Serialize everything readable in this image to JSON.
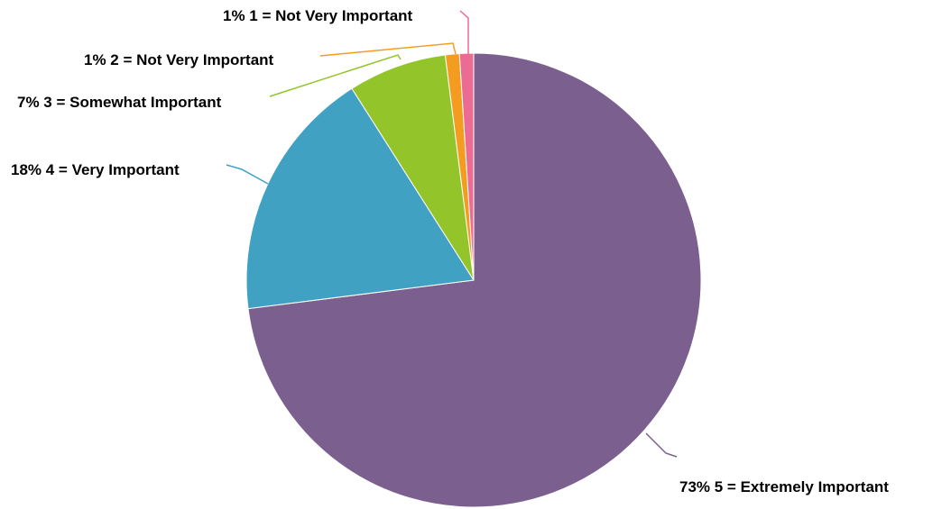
{
  "chart_data": {
    "type": "pie",
    "title": "",
    "start_angle_deg": 0,
    "direction": "clockwise",
    "slices": [
      {
        "category": "5 = Extremely Important",
        "value": 73,
        "label": "73% 5 = Extremely Important",
        "color": "#7b5f8e"
      },
      {
        "category": "4 = Very Important",
        "value": 18,
        "label": "18% 4 = Very Important",
        "color": "#41a1c2"
      },
      {
        "category": "3 = Somewhat Important",
        "value": 7,
        "label": "7% 3 = Somewhat Important",
        "color": "#93c42a"
      },
      {
        "category": "2 = Not Very Important",
        "value": 1,
        "label": "1% 2 = Not Very Important",
        "color": "#f39c1f"
      },
      {
        "category": "1 = Not Very Important",
        "value": 1,
        "label": "1% 1 = Not Very Important",
        "color": "#ec6b93"
      }
    ]
  }
}
